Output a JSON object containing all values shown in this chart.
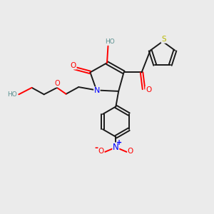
{
  "background_color": "#ebebeb",
  "bond_color": "#1a1a1a",
  "atom_colors": {
    "O": "#ff0000",
    "N": "#0000ff",
    "S": "#b8b800",
    "C": "#1a1a1a",
    "H": "#5a9090"
  }
}
